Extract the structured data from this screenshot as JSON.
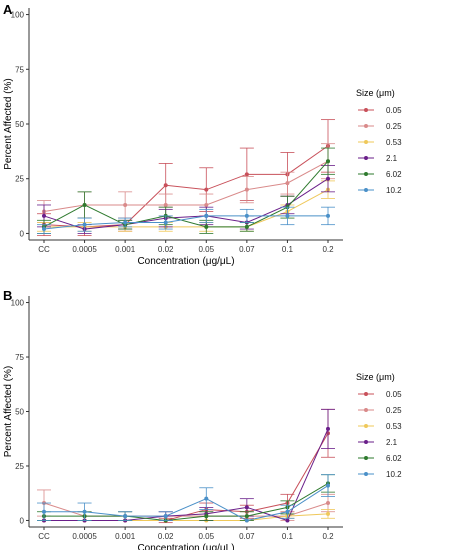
{
  "chart_data": [
    {
      "type": "line",
      "panel_label": "A",
      "categories": [
        "CC",
        "0.0005",
        "0.001",
        "0.02",
        "0.05",
        "0.07",
        "0.1",
        "0.2"
      ],
      "xlabel": "Concentration (μg/μL)",
      "ylabel": "Percent Affected (%)",
      "ylim": [
        -3,
        103
      ],
      "yticks": [
        0,
        25,
        50,
        75,
        100
      ],
      "grid": false,
      "legend_title": "Size (μm)",
      "legend_position": "right",
      "series": [
        {
          "name": "0.05",
          "color": "#c8505a",
          "values": [
            4,
            3,
            4,
            22,
            20,
            27,
            27,
            40
          ],
          "err": [
            5,
            4,
            3,
            10,
            10,
            12,
            10,
            12
          ]
        },
        {
          "name": "0.25",
          "color": "#d98a8a",
          "values": [
            10,
            13,
            13,
            13,
            13,
            20,
            23,
            33
          ],
          "err": [
            5,
            6,
            6,
            5,
            5,
            6,
            5,
            8
          ]
        },
        {
          "name": "0.53",
          "color": "#efc85a",
          "values": [
            3,
            3,
            3,
            3,
            3,
            3,
            10,
            20
          ],
          "err": [
            2,
            2,
            2,
            2,
            2,
            2,
            3,
            4
          ]
        },
        {
          "name": "2.1",
          "color": "#6a1f8a",
          "values": [
            8,
            2,
            4,
            7,
            8,
            5,
            13,
            25
          ],
          "err": [
            5,
            2,
            2,
            4,
            4,
            3,
            4,
            6
          ]
        },
        {
          "name": "6.02",
          "color": "#2e7a2e",
          "values": [
            3,
            13,
            4,
            8,
            3,
            3,
            12,
            33
          ],
          "err": [
            3,
            6,
            2,
            4,
            3,
            2,
            5,
            6
          ]
        },
        {
          "name": "10.2",
          "color": "#4a90c8",
          "values": [
            2,
            4,
            5,
            5,
            8,
            8,
            8,
            8
          ],
          "err": [
            2,
            3,
            2,
            3,
            3,
            3,
            4,
            4
          ]
        }
      ]
    },
    {
      "type": "line",
      "panel_label": "B",
      "categories": [
        "CC",
        "0.0005",
        "0.001",
        "0.02",
        "0.05",
        "0.07",
        "0.1",
        "0.2"
      ],
      "xlabel": "Concentration (μg/μL)",
      "ylabel": "Percent Affected (%)",
      "ylim": [
        -3,
        103
      ],
      "yticks": [
        0,
        25,
        50,
        75,
        100
      ],
      "grid": false,
      "legend_title": "Size (μm)",
      "legend_position": "right",
      "series": [
        {
          "name": "0.05",
          "color": "#c8505a",
          "values": [
            0,
            0,
            0,
            0,
            5,
            4,
            8,
            40
          ],
          "err": [
            0,
            0,
            0,
            1,
            3,
            3,
            4,
            11
          ]
        },
        {
          "name": "0.25",
          "color": "#d98a8a",
          "values": [
            8,
            2,
            2,
            2,
            2,
            2,
            2,
            8
          ],
          "err": [
            6,
            2,
            2,
            2,
            2,
            2,
            2,
            4
          ]
        },
        {
          "name": "0.53",
          "color": "#efc85a",
          "values": [
            0,
            0,
            0,
            0,
            0,
            0,
            2,
            3
          ],
          "err": [
            0,
            0,
            0,
            0,
            0,
            0,
            1,
            2
          ]
        },
        {
          "name": "2.1",
          "color": "#6a1f8a",
          "values": [
            0,
            0,
            0,
            2,
            3,
            6,
            0,
            42
          ],
          "err": [
            0,
            0,
            0,
            2,
            3,
            4,
            0,
            9
          ]
        },
        {
          "name": "6.02",
          "color": "#2e7a2e",
          "values": [
            2,
            2,
            2,
            0,
            2,
            2,
            6,
            17
          ],
          "err": [
            2,
            2,
            2,
            0,
            2,
            2,
            3,
            4
          ]
        },
        {
          "name": "10.2",
          "color": "#4a90c8",
          "values": [
            4,
            4,
            2,
            2,
            10,
            0,
            4,
            16
          ],
          "err": [
            4,
            4,
            2,
            2,
            5,
            0,
            3,
            5
          ]
        }
      ]
    }
  ]
}
